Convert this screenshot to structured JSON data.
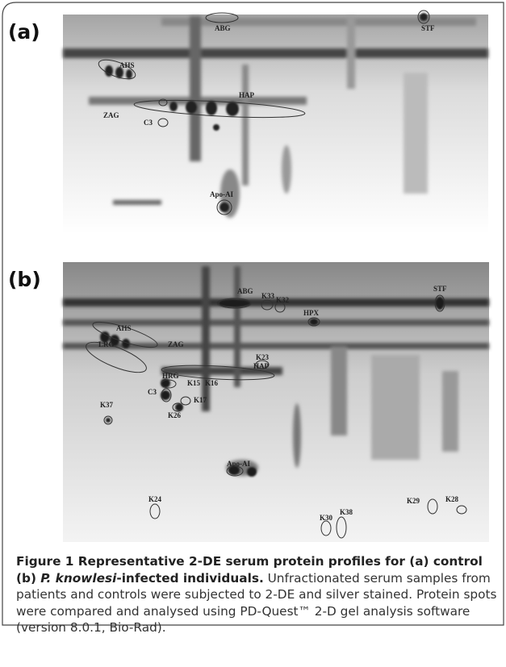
{
  "panels": [
    {
      "label": "(a)",
      "spots": [
        "ABG",
        "STF",
        "AHS",
        "HAP",
        "ZAG",
        "C3",
        "Apo-AI"
      ]
    },
    {
      "label": "(b)",
      "spots": [
        "ABG",
        "K33",
        "K32",
        "STF",
        "HPX",
        "AHS",
        "LRG",
        "ZAG",
        "K23",
        "HAP",
        "HRG",
        "K15",
        "K16",
        "C3",
        "K17",
        "K26",
        "K37",
        "Apo-AI",
        "K24",
        "K29",
        "K28",
        "K30",
        "K38"
      ]
    }
  ],
  "caption": {
    "title_start": "Figure 1 Representative 2-DE serum protein profiles for (a) control (b) ",
    "species": "P. knowlesi",
    "title_end": "-infected individuals.",
    "body": " Unfractionated serum samples from patients and controls were subjected to 2-DE and silver stained. Protein spots were compared and analysed using PD-Quest™ 2-D gel analysis software (version 8.0.1, Bio-Rad)."
  }
}
